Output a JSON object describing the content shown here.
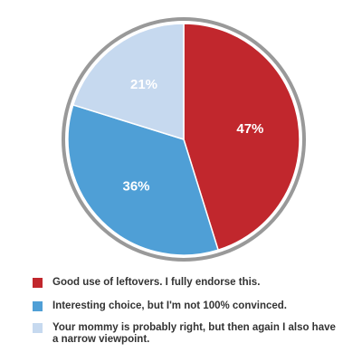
{
  "chart_data": {
    "type": "pie",
    "categories": [
      "Good use of leftovers. I fully endorse this.",
      "Interesting choice, but I'm not 100% convinced.",
      "Your mommy is probably right, but then again I also have a narrow viewpoint."
    ],
    "values": [
      47,
      36,
      21
    ],
    "value_labels": [
      "47%",
      "36%",
      "21%"
    ],
    "colors": [
      "#c1272d",
      "#4f9fd6",
      "#c6d9ef"
    ]
  }
}
